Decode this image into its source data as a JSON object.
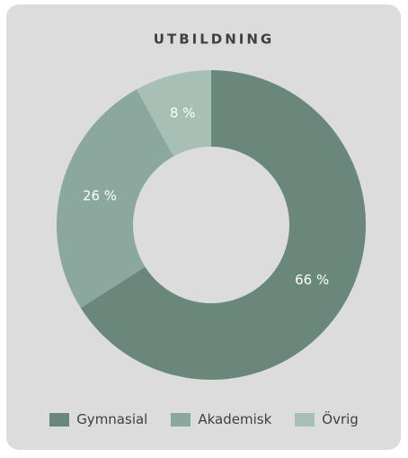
{
  "chart_data": {
    "type": "donut",
    "title": "UTBILDNING",
    "categories": [
      "Gymnasial",
      "Akademisk",
      "Övrig"
    ],
    "values": [
      66,
      26,
      8
    ],
    "value_labels": [
      "66 %",
      "26 %",
      "8 %"
    ],
    "colors": [
      "#6a877b",
      "#8ba89e",
      "#a8bfb6"
    ]
  }
}
